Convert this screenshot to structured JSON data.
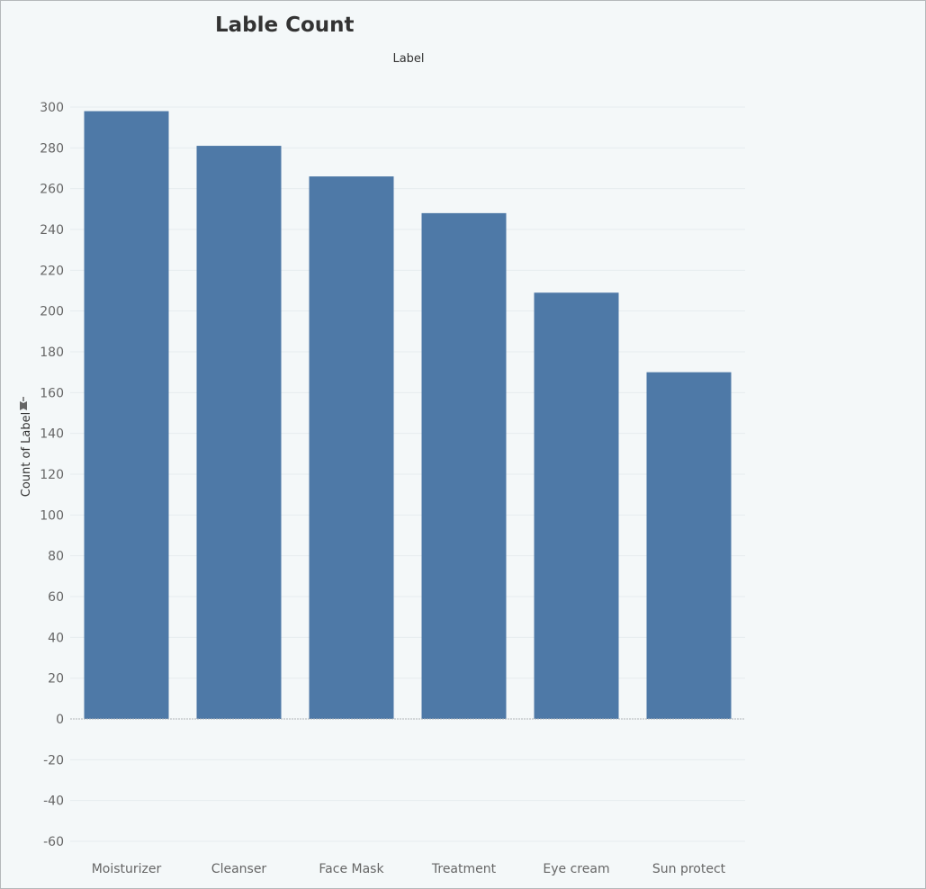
{
  "chart_data": {
    "type": "bar",
    "title": "Lable Count",
    "column_header": "Label",
    "xlabel": "",
    "ylabel": "Count of Label",
    "ylim": [
      -65,
      305
    ],
    "yticks": [
      300,
      280,
      260,
      240,
      220,
      200,
      180,
      160,
      140,
      120,
      100,
      80,
      60,
      40,
      20,
      0,
      -20,
      -40,
      -60
    ],
    "categories": [
      "Moisturizer",
      "Cleanser",
      "Face Mask",
      "Treatment",
      "Eye cream",
      "Sun protect"
    ],
    "values": [
      298,
      281,
      266,
      248,
      209,
      170
    ],
    "bar_color": "#4e79a7",
    "grid": true,
    "legend": "none"
  }
}
